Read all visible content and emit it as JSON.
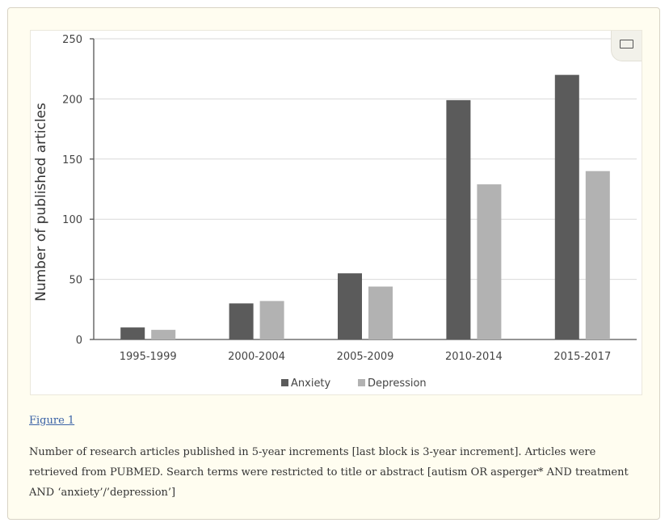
{
  "figure": {
    "link_label": "Figure 1",
    "caption": "Number of research articles published in 5-year increments [last block is 3-year increment]. Articles were retrieved from PUBMED. Search terms were restricted to title or abstract [autism OR asperger* AND treatment AND ‘anxiety’/’depression’]",
    "expand_icon": "expand-icon"
  },
  "colors": {
    "anxiety": "#5b5b5b",
    "depression": "#b2b2b2",
    "grid": "#d9d9d9",
    "axis": "#555555",
    "link": "#3a62a6"
  },
  "chart_data": {
    "type": "bar",
    "categories": [
      "1995-1999",
      "2000-2004",
      "2005-2009",
      "2010-2014",
      "2015-2017"
    ],
    "series": [
      {
        "name": "Anxiety",
        "values": [
          10,
          30,
          55,
          199,
          220
        ]
      },
      {
        "name": "Depression",
        "values": [
          8,
          32,
          44,
          129,
          140
        ]
      }
    ],
    "ylabel": "Number of published articles",
    "xlabel": "",
    "ylim": [
      0,
      250
    ],
    "yticks": [
      0,
      50,
      100,
      150,
      200,
      250
    ],
    "grid": true,
    "legend_position": "bottom"
  }
}
